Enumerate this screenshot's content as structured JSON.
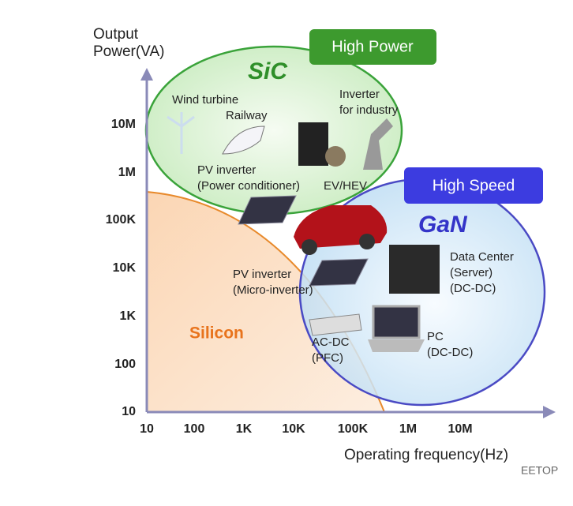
{
  "axes": {
    "y_title": [
      "Output",
      "Power(VA)"
    ],
    "x_title": "Operating frequency(Hz)",
    "y_ticks": [
      "10",
      "100",
      "1K",
      "10K",
      "100K",
      "1M",
      "10M"
    ],
    "x_ticks": [
      "10",
      "100",
      "1K",
      "10K",
      "100K",
      "1M",
      "10M"
    ]
  },
  "regions": {
    "silicon": "Silicon",
    "sic": "SiC",
    "gan": "GaN",
    "high_power": "High Power",
    "high_speed": "High Speed"
  },
  "applications": [
    {
      "lines": [
        "Wind turbine"
      ]
    },
    {
      "lines": [
        "Railway"
      ]
    },
    {
      "lines": [
        "Inverter",
        "for industry"
      ]
    },
    {
      "lines": [
        "PV inverter",
        "(Power conditioner)"
      ]
    },
    {
      "lines": [
        "EV/HEV"
      ]
    },
    {
      "lines": [
        "PV inverter",
        "(Micro-inverter)"
      ]
    },
    {
      "lines": [
        "Data Center",
        "(Server)",
        "(DC-DC)"
      ]
    },
    {
      "lines": [
        "AC-DC",
        "(PFC)"
      ]
    },
    {
      "lines": [
        "PC",
        "(DC-DC)"
      ]
    }
  ],
  "watermark": "EETOP"
}
